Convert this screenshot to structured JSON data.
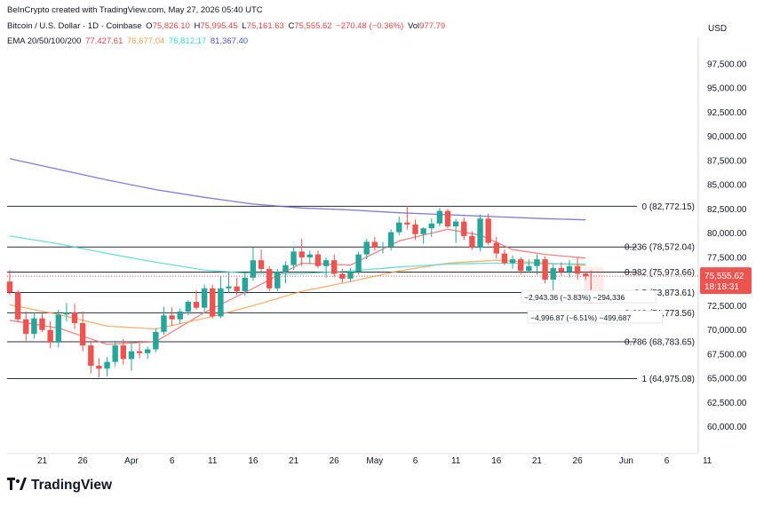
{
  "header": {
    "published": "BeInCrypto created with TradingView.com, May 27, 2026 05:40 UTC",
    "symbol": "Bitcoin / U.S. Dollar · 1D · Coinbase",
    "o_label": "O",
    "o_val": "75,826.10",
    "h_label": "H",
    "h_val": "75,995.45",
    "l_label": "L",
    "l_val": "75,161.63",
    "c_label": "C",
    "c_val": "75,555.62",
    "change": "−270.48 (−0.36%)",
    "vol_label": "Vol",
    "vol_val": "977.79",
    "ema_label": "EMA 20/50/100/200",
    "ema20": "77,427.61",
    "ema50": "76,677.04",
    "ema100": "76,812.17",
    "ema200": "81,367.40"
  },
  "currency": "USD",
  "logo_text": "TradingView",
  "colors": {
    "up": "#26a69a",
    "down": "#ef5350",
    "ema20": "#ef6f6f",
    "ema50": "#f5a55c",
    "ema100": "#52d8cf",
    "ema200": "#6b63d1"
  },
  "chart_data": {
    "type": "candlestick",
    "ylim": [
      57500,
      99500
    ],
    "y_ticks": [
      "97,500.00",
      "95,000.00",
      "92,500.00",
      "90,000.00",
      "87,500.00",
      "85,000.00",
      "82,500.00",
      "80,000.00",
      "77,500.00",
      "75,000.00",
      "72,500.00",
      "70,000.00",
      "67,500.00",
      "65,000.00",
      "62,500.00",
      "60,000.00"
    ],
    "x_ticks": [
      {
        "day": 4,
        "label": "21"
      },
      {
        "day": 9,
        "label": "26"
      },
      {
        "day": 15,
        "label": "Apr"
      },
      {
        "day": 20,
        "label": "6"
      },
      {
        "day": 25,
        "label": "11"
      },
      {
        "day": 30,
        "label": "16"
      },
      {
        "day": 35,
        "label": "21"
      },
      {
        "day": 40,
        "label": "26"
      },
      {
        "day": 45,
        "label": "May"
      },
      {
        "day": 50,
        "label": "6"
      },
      {
        "day": 55,
        "label": "11"
      },
      {
        "day": 60,
        "label": "16"
      },
      {
        "day": 65,
        "label": "21"
      },
      {
        "day": 70,
        "label": "26"
      },
      {
        "day": 76,
        "label": "Jun"
      },
      {
        "day": 81,
        "label": "6"
      },
      {
        "day": 86,
        "label": "11"
      }
    ],
    "candles": [
      {
        "o": 75000,
        "h": 76200,
        "l": 73600,
        "c": 73900
      },
      {
        "o": 73900,
        "h": 74100,
        "l": 70800,
        "c": 71100
      },
      {
        "o": 71100,
        "h": 71900,
        "l": 68900,
        "c": 69600
      },
      {
        "o": 69600,
        "h": 71800,
        "l": 69100,
        "c": 71200
      },
      {
        "o": 71200,
        "h": 71700,
        "l": 69800,
        "c": 70000
      },
      {
        "o": 70000,
        "h": 70900,
        "l": 68100,
        "c": 68700
      },
      {
        "o": 68700,
        "h": 72100,
        "l": 68200,
        "c": 71600
      },
      {
        "o": 71600,
        "h": 72800,
        "l": 70900,
        "c": 71800
      },
      {
        "o": 71800,
        "h": 72700,
        "l": 70100,
        "c": 70700
      },
      {
        "o": 70700,
        "h": 71900,
        "l": 67800,
        "c": 68400
      },
      {
        "o": 68400,
        "h": 68900,
        "l": 65500,
        "c": 66300
      },
      {
        "o": 66300,
        "h": 67100,
        "l": 65100,
        "c": 66000
      },
      {
        "o": 66000,
        "h": 67200,
        "l": 65200,
        "c": 66700
      },
      {
        "o": 66700,
        "h": 68900,
        "l": 66200,
        "c": 68400
      },
      {
        "o": 68400,
        "h": 69100,
        "l": 66400,
        "c": 67000
      },
      {
        "o": 67000,
        "h": 68600,
        "l": 65800,
        "c": 67800
      },
      {
        "o": 67800,
        "h": 68600,
        "l": 67100,
        "c": 67600
      },
      {
        "o": 67600,
        "h": 68300,
        "l": 67000,
        "c": 68000
      },
      {
        "o": 68000,
        "h": 70200,
        "l": 67700,
        "c": 69800
      },
      {
        "o": 69800,
        "h": 72400,
        "l": 69500,
        "c": 71500
      },
      {
        "o": 71500,
        "h": 72300,
        "l": 70400,
        "c": 71100
      },
      {
        "o": 71100,
        "h": 72200,
        "l": 70600,
        "c": 71900
      },
      {
        "o": 71900,
        "h": 73100,
        "l": 71500,
        "c": 72900
      },
      {
        "o": 72900,
        "h": 74100,
        "l": 72100,
        "c": 72300
      },
      {
        "o": 72300,
        "h": 74700,
        "l": 71900,
        "c": 74300
      },
      {
        "o": 74300,
        "h": 74700,
        "l": 71200,
        "c": 71400
      },
      {
        "o": 71400,
        "h": 75600,
        "l": 71200,
        "c": 74300
      },
      {
        "o": 74300,
        "h": 76000,
        "l": 73800,
        "c": 74500
      },
      {
        "o": 74500,
        "h": 75400,
        "l": 73600,
        "c": 74000
      },
      {
        "o": 74000,
        "h": 75900,
        "l": 73500,
        "c": 75400
      },
      {
        "o": 75400,
        "h": 78500,
        "l": 75100,
        "c": 77200
      },
      {
        "o": 77200,
        "h": 78300,
        "l": 76000,
        "c": 76300
      },
      {
        "o": 76300,
        "h": 76600,
        "l": 74000,
        "c": 74300
      },
      {
        "o": 74300,
        "h": 76300,
        "l": 74000,
        "c": 76000
      },
      {
        "o": 76000,
        "h": 77100,
        "l": 74800,
        "c": 76700
      },
      {
        "o": 76700,
        "h": 78600,
        "l": 76200,
        "c": 78100
      },
      {
        "o": 78100,
        "h": 79400,
        "l": 76600,
        "c": 77500
      },
      {
        "o": 77500,
        "h": 78200,
        "l": 76800,
        "c": 77800
      },
      {
        "o": 77800,
        "h": 78200,
        "l": 76400,
        "c": 76600
      },
      {
        "o": 76600,
        "h": 77500,
        "l": 75400,
        "c": 77200
      },
      {
        "o": 77200,
        "h": 77800,
        "l": 75500,
        "c": 75800
      },
      {
        "o": 75800,
        "h": 76300,
        "l": 74900,
        "c": 75300
      },
      {
        "o": 75300,
        "h": 76400,
        "l": 75000,
        "c": 76000
      },
      {
        "o": 76000,
        "h": 78100,
        "l": 75700,
        "c": 77800
      },
      {
        "o": 77800,
        "h": 79400,
        "l": 77300,
        "c": 79100
      },
      {
        "o": 79100,
        "h": 79600,
        "l": 78200,
        "c": 78500
      },
      {
        "o": 78500,
        "h": 79100,
        "l": 77900,
        "c": 78600
      },
      {
        "o": 78600,
        "h": 80400,
        "l": 78200,
        "c": 80100
      },
      {
        "o": 80100,
        "h": 81700,
        "l": 79800,
        "c": 81100
      },
      {
        "o": 81100,
        "h": 82800,
        "l": 80400,
        "c": 80900
      },
      {
        "o": 80900,
        "h": 81400,
        "l": 79300,
        "c": 79900
      },
      {
        "o": 79900,
        "h": 80600,
        "l": 78900,
        "c": 80500
      },
      {
        "o": 80500,
        "h": 81500,
        "l": 79600,
        "c": 81000
      },
      {
        "o": 81000,
        "h": 82600,
        "l": 80700,
        "c": 82300
      },
      {
        "o": 82300,
        "h": 82500,
        "l": 80500,
        "c": 80700
      },
      {
        "o": 80700,
        "h": 81500,
        "l": 79000,
        "c": 81200
      },
      {
        "o": 81200,
        "h": 81600,
        "l": 79300,
        "c": 79700
      },
      {
        "o": 79700,
        "h": 80200,
        "l": 78300,
        "c": 78500
      },
      {
        "o": 78500,
        "h": 81900,
        "l": 78100,
        "c": 81500
      },
      {
        "o": 81500,
        "h": 82000,
        "l": 78800,
        "c": 79000
      },
      {
        "o": 79000,
        "h": 79600,
        "l": 77400,
        "c": 77900
      },
      {
        "o": 77900,
        "h": 78300,
        "l": 76700,
        "c": 76900
      },
      {
        "o": 76900,
        "h": 77700,
        "l": 76300,
        "c": 77300
      },
      {
        "o": 77300,
        "h": 77500,
        "l": 75700,
        "c": 76100
      },
      {
        "o": 76100,
        "h": 77300,
        "l": 75900,
        "c": 76600
      },
      {
        "o": 76600,
        "h": 77800,
        "l": 75700,
        "c": 77300
      },
      {
        "o": 77300,
        "h": 77600,
        "l": 74800,
        "c": 75200
      },
      {
        "o": 75200,
        "h": 76800,
        "l": 73900,
        "c": 76400
      },
      {
        "o": 76400,
        "h": 77000,
        "l": 75600,
        "c": 76000
      },
      {
        "o": 76000,
        "h": 77200,
        "l": 75400,
        "c": 76600
      },
      {
        "o": 76600,
        "h": 77500,
        "l": 75200,
        "c": 75800
      },
      {
        "o": 75826.1,
        "h": 75995.45,
        "l": 75161.63,
        "c": 75555.62
      }
    ],
    "ema": [
      {
        "name": "EMA 20",
        "points": [
          [
            0,
            71000
          ],
          [
            6,
            70200
          ],
          [
            12,
            68500
          ],
          [
            18,
            68800
          ],
          [
            24,
            71800
          ],
          [
            30,
            74300
          ],
          [
            36,
            76900
          ],
          [
            42,
            76700
          ],
          [
            48,
            79200
          ],
          [
            54,
            80400
          ],
          [
            58,
            79800
          ],
          [
            62,
            78300
          ],
          [
            66,
            77800
          ],
          [
            71,
            77430
          ]
        ]
      },
      {
        "name": "EMA 50",
        "points": [
          [
            0,
            72600
          ],
          [
            6,
            71600
          ],
          [
            12,
            70400
          ],
          [
            18,
            70100
          ],
          [
            24,
            71200
          ],
          [
            30,
            72500
          ],
          [
            36,
            74000
          ],
          [
            42,
            75000
          ],
          [
            48,
            76100
          ],
          [
            54,
            76900
          ],
          [
            60,
            77200
          ],
          [
            66,
            76900
          ],
          [
            71,
            76680
          ]
        ]
      },
      {
        "name": "EMA 100",
        "points": [
          [
            0,
            79700
          ],
          [
            6,
            78900
          ],
          [
            12,
            77900
          ],
          [
            18,
            77000
          ],
          [
            24,
            76200
          ],
          [
            30,
            75800
          ],
          [
            36,
            75800
          ],
          [
            42,
            76100
          ],
          [
            48,
            76500
          ],
          [
            54,
            76800
          ],
          [
            60,
            76900
          ],
          [
            66,
            76850
          ],
          [
            71,
            76810
          ]
        ]
      },
      {
        "name": "EMA 200",
        "points": [
          [
            0,
            87700
          ],
          [
            6,
            86600
          ],
          [
            12,
            85500
          ],
          [
            18,
            84500
          ],
          [
            24,
            83700
          ],
          [
            30,
            83000
          ],
          [
            36,
            82600
          ],
          [
            42,
            82400
          ],
          [
            48,
            82100
          ],
          [
            54,
            81900
          ],
          [
            60,
            81700
          ],
          [
            66,
            81500
          ],
          [
            71,
            81370
          ]
        ]
      }
    ],
    "fib_levels": [
      {
        "price": 82772.15,
        "label": "0 (82,772.15)"
      },
      {
        "price": 78572.04,
        "label": "0.236 (78,572.04)"
      },
      {
        "price": 75973.66,
        "label": "0.382 (75,973.66)"
      },
      {
        "price": 73873.61,
        "label": "0.5 (73,873.61)"
      },
      {
        "price": 71773.56,
        "label": "0.618 (71,773.56)"
      },
      {
        "price": 68783.65,
        "label": "0.786 (68,783.65)"
      },
      {
        "price": 64975.08,
        "label": "1 (64,975.08)"
      }
    ],
    "last_price": "75,555.62",
    "countdown": "18:18:31",
    "measure_1": "−2,943.36 (−3.83%) −294,336",
    "measure_2": "−4,996.87 (−6.51%) −499,687",
    "measure_range": {
      "from_day": 71,
      "to_day": 73,
      "top": 76500,
      "bottom": 72700
    }
  }
}
